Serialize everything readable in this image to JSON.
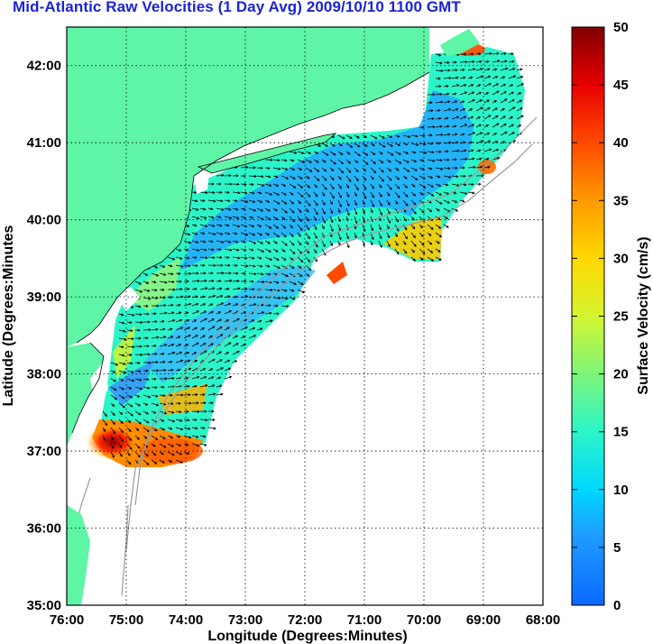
{
  "title": "Mid-Atlantic Raw Velocities (1 Day Avg) 2009/10/10 1100 GMT",
  "xlabel": "Longitude (Degrees:Minutes)",
  "ylabel": "Latitude (Degrees:Minutes",
  "colorbar_label": "Surface Velocity (cm/s)",
  "x_ticks": [
    "76:00",
    "75:00",
    "74:00",
    "73:00",
    "72:00",
    "71:00",
    "70:00",
    "69:00",
    "68:00"
  ],
  "y_ticks": [
    "42:00",
    "41:00",
    "40:00",
    "39:00",
    "38:00",
    "37:00",
    "36:00",
    "35:00"
  ],
  "colorbar_ticks": [
    "50",
    "45",
    "40",
    "35",
    "30",
    "25",
    "20",
    "15",
    "10",
    "5",
    "0"
  ],
  "colors": {
    "land": "#5ef5a7",
    "title": "#1a23d9",
    "grid": "#000000",
    "bathymetry": "#9a9a9a"
  },
  "chart_data": {
    "type": "heatmap",
    "title": "Mid-Atlantic Raw Velocities (1 Day Avg) 2009/10/10 1100 GMT",
    "xlabel": "Longitude (Degrees:Minutes)",
    "ylabel": "Latitude (Degrees:Minutes",
    "xlim": [
      -76,
      -68
    ],
    "ylim": [
      35,
      42.5
    ],
    "colorbar_range": [
      0,
      50
    ],
    "colorbar_units": "cm/s",
    "colormap": "jet",
    "grid": true
  }
}
